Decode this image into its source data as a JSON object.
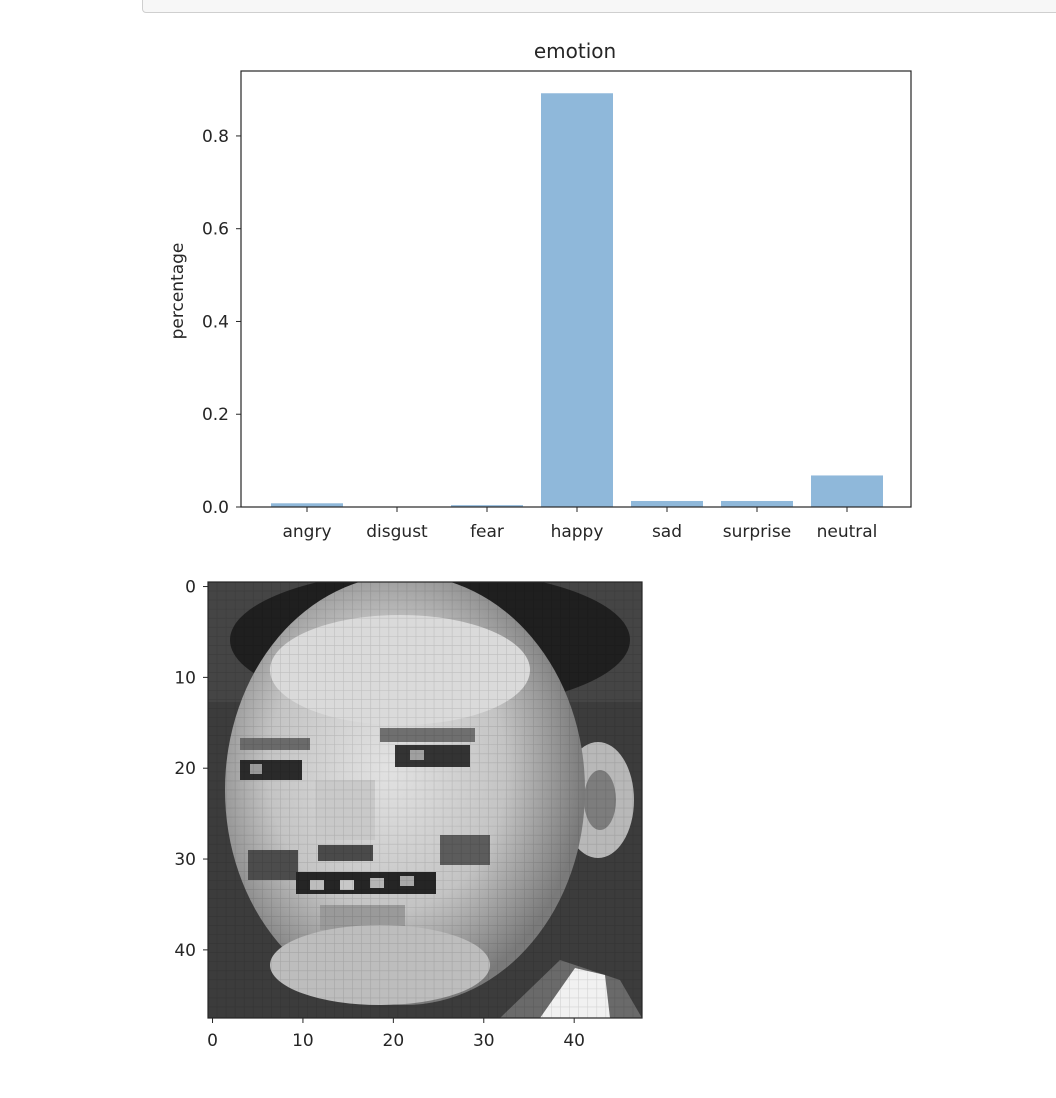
{
  "chart_data": [
    {
      "type": "bar",
      "title": "emotion",
      "xlabel": "",
      "ylabel": "percentage",
      "categories": [
        "angry",
        "disgust",
        "fear",
        "happy",
        "sad",
        "surprise",
        "neutral"
      ],
      "values": [
        0.008,
        0.001,
        0.004,
        0.892,
        0.013,
        0.013,
        0.068
      ],
      "ylim": [
        0,
        0.94
      ],
      "yticks": [
        0.0,
        0.2,
        0.4,
        0.6,
        0.8
      ],
      "ytick_labels": [
        "0.0",
        "0.2",
        "0.4",
        "0.6",
        "0.8"
      ],
      "bar_color": "#8fb8da",
      "grid": false
    },
    {
      "type": "heatmap",
      "description_colormap": "gray",
      "xlim": [
        -0.5,
        47.5
      ],
      "ylim": [
        47.5,
        -0.5
      ],
      "xticks": [
        0,
        10,
        20,
        30,
        40
      ],
      "xtick_labels": [
        "0",
        "10",
        "20",
        "30",
        "40"
      ],
      "yticks": [
        0,
        10,
        20,
        30,
        40
      ],
      "ytick_labels": [
        "0",
        "10",
        "20",
        "30",
        "40"
      ]
    }
  ]
}
